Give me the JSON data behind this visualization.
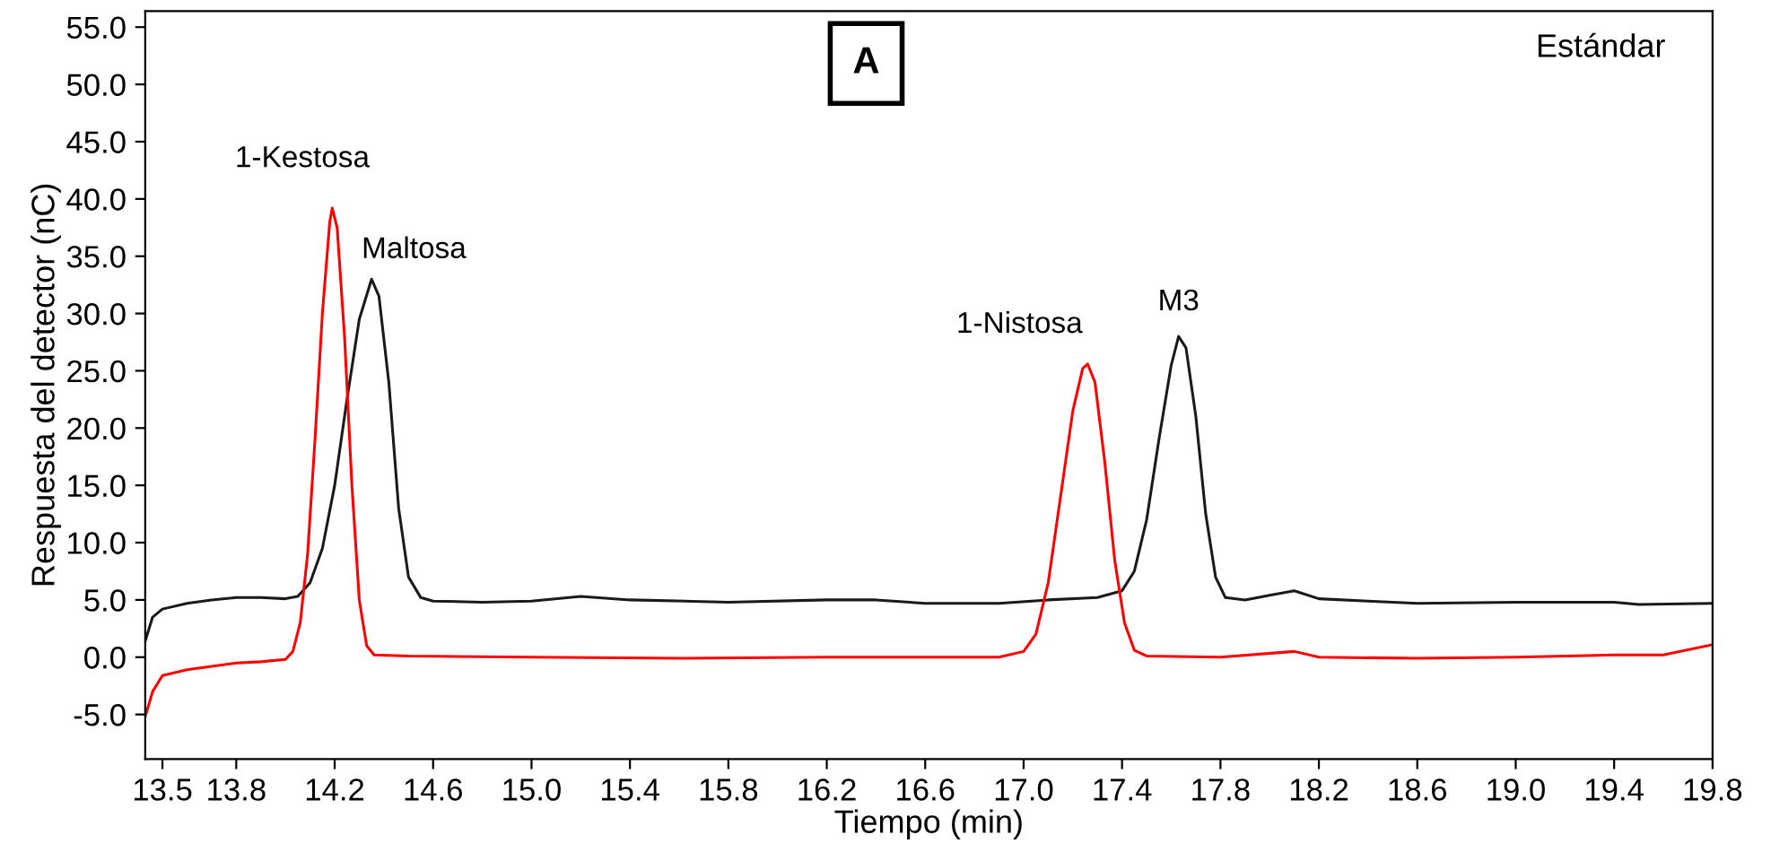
{
  "chart_data": {
    "type": "line",
    "xlabel": "Tiempo (min)",
    "ylabel": "Respuesta del detector (nC)",
    "xlim": [
      13.43,
      19.8
    ],
    "ylim": [
      -8.9,
      56.4
    ],
    "xticks": [
      13.5,
      13.8,
      14.2,
      14.6,
      {
        "value": 15.0,
        "label": "15.0"
      },
      15.4,
      15.8,
      16.2,
      16.6,
      {
        "value": 17.0,
        "label": "17.0"
      },
      17.4,
      17.8,
      18.2,
      18.6,
      {
        "value": 19.0,
        "label": "19.0"
      },
      19.4,
      19.8
    ],
    "yticks": [
      {
        "value": -5,
        "label": "-5.0"
      },
      {
        "value": 0,
        "label": "0.0"
      },
      {
        "value": 5,
        "label": "5.0"
      },
      {
        "value": 10,
        "label": "10.0"
      },
      {
        "value": 15,
        "label": "15.0"
      },
      {
        "value": 20,
        "label": "20.0"
      },
      {
        "value": 25,
        "label": "25.0"
      },
      {
        "value": 30,
        "label": "30.0"
      },
      {
        "value": 35,
        "label": "35.0"
      },
      {
        "value": 40,
        "label": "40.0"
      },
      {
        "value": 45,
        "label": "45.0"
      },
      {
        "value": 50,
        "label": "50.0"
      },
      {
        "value": 55,
        "label": "55.0"
      }
    ],
    "grid": false,
    "legend": false,
    "marker": "none",
    "line_style": "solid",
    "series": [
      {
        "color": "#1a1a1a",
        "x": [
          13.43,
          13.46,
          13.5,
          13.6,
          13.7,
          13.8,
          13.9,
          14.0,
          14.05,
          14.1,
          14.15,
          14.2,
          14.25,
          14.3,
          14.35,
          14.38,
          14.42,
          14.46,
          14.5,
          14.55,
          14.6,
          14.8,
          15.0,
          15.2,
          15.4,
          15.8,
          16.2,
          16.4,
          16.6,
          16.9,
          17.1,
          17.3,
          17.4,
          17.45,
          17.5,
          17.55,
          17.6,
          17.63,
          17.66,
          17.7,
          17.74,
          17.78,
          17.82,
          17.9,
          18.0,
          18.1,
          18.2,
          18.4,
          18.6,
          19.0,
          19.4,
          19.5,
          19.8
        ],
        "values": [
          1.4,
          3.5,
          4.2,
          4.7,
          5.0,
          5.2,
          5.2,
          5.1,
          5.3,
          6.5,
          9.5,
          15.0,
          22.5,
          29.5,
          33.0,
          31.5,
          24.0,
          13.0,
          7.0,
          5.2,
          4.9,
          4.8,
          4.9,
          5.3,
          5.0,
          4.8,
          5.0,
          5.0,
          4.7,
          4.7,
          5.0,
          5.2,
          5.8,
          7.5,
          12.0,
          19.0,
          25.5,
          28.0,
          27.0,
          21.0,
          12.5,
          7.0,
          5.2,
          5.0,
          5.4,
          5.8,
          5.1,
          4.9,
          4.7,
          4.8,
          4.8,
          4.6,
          4.7
        ]
      },
      {
        "color": "#ff0000",
        "x": [
          13.43,
          13.46,
          13.5,
          13.6,
          13.7,
          13.8,
          13.9,
          14.0,
          14.03,
          14.06,
          14.09,
          14.12,
          14.15,
          14.18,
          14.19,
          14.21,
          14.24,
          14.27,
          14.3,
          14.33,
          14.36,
          14.5,
          15.0,
          15.6,
          16.2,
          16.9,
          17.0,
          17.05,
          17.1,
          17.15,
          17.2,
          17.24,
          17.26,
          17.29,
          17.33,
          17.37,
          17.41,
          17.45,
          17.5,
          17.8,
          18.1,
          18.2,
          18.6,
          19.0,
          19.4,
          19.6,
          19.8
        ],
        "values": [
          -5.2,
          -3.0,
          -1.6,
          -1.1,
          -0.8,
          -0.5,
          -0.4,
          -0.2,
          0.5,
          3.0,
          9.0,
          19.0,
          30.0,
          38.0,
          39.2,
          37.5,
          28.0,
          15.0,
          5.0,
          1.0,
          0.2,
          0.1,
          0.0,
          -0.1,
          0.0,
          0.0,
          0.5,
          2.0,
          6.5,
          14.0,
          21.5,
          25.2,
          25.6,
          24.0,
          17.0,
          8.5,
          3.0,
          0.6,
          0.1,
          0.0,
          0.5,
          0.0,
          -0.1,
          0.0,
          0.2,
          0.2,
          1.1
        ]
      }
    ],
    "annotations": [
      {
        "text": "1-Kestosa",
        "x": 14.19,
        "y": 39.2
      },
      {
        "text": "Maltosa",
        "x": 14.35,
        "y": 33.0
      },
      {
        "text": "1-Nistosa",
        "x": 17.26,
        "y": 25.6
      },
      {
        "text": "M3",
        "x": 17.63,
        "y": 28.0
      },
      "A",
      "Estándar"
    ]
  }
}
